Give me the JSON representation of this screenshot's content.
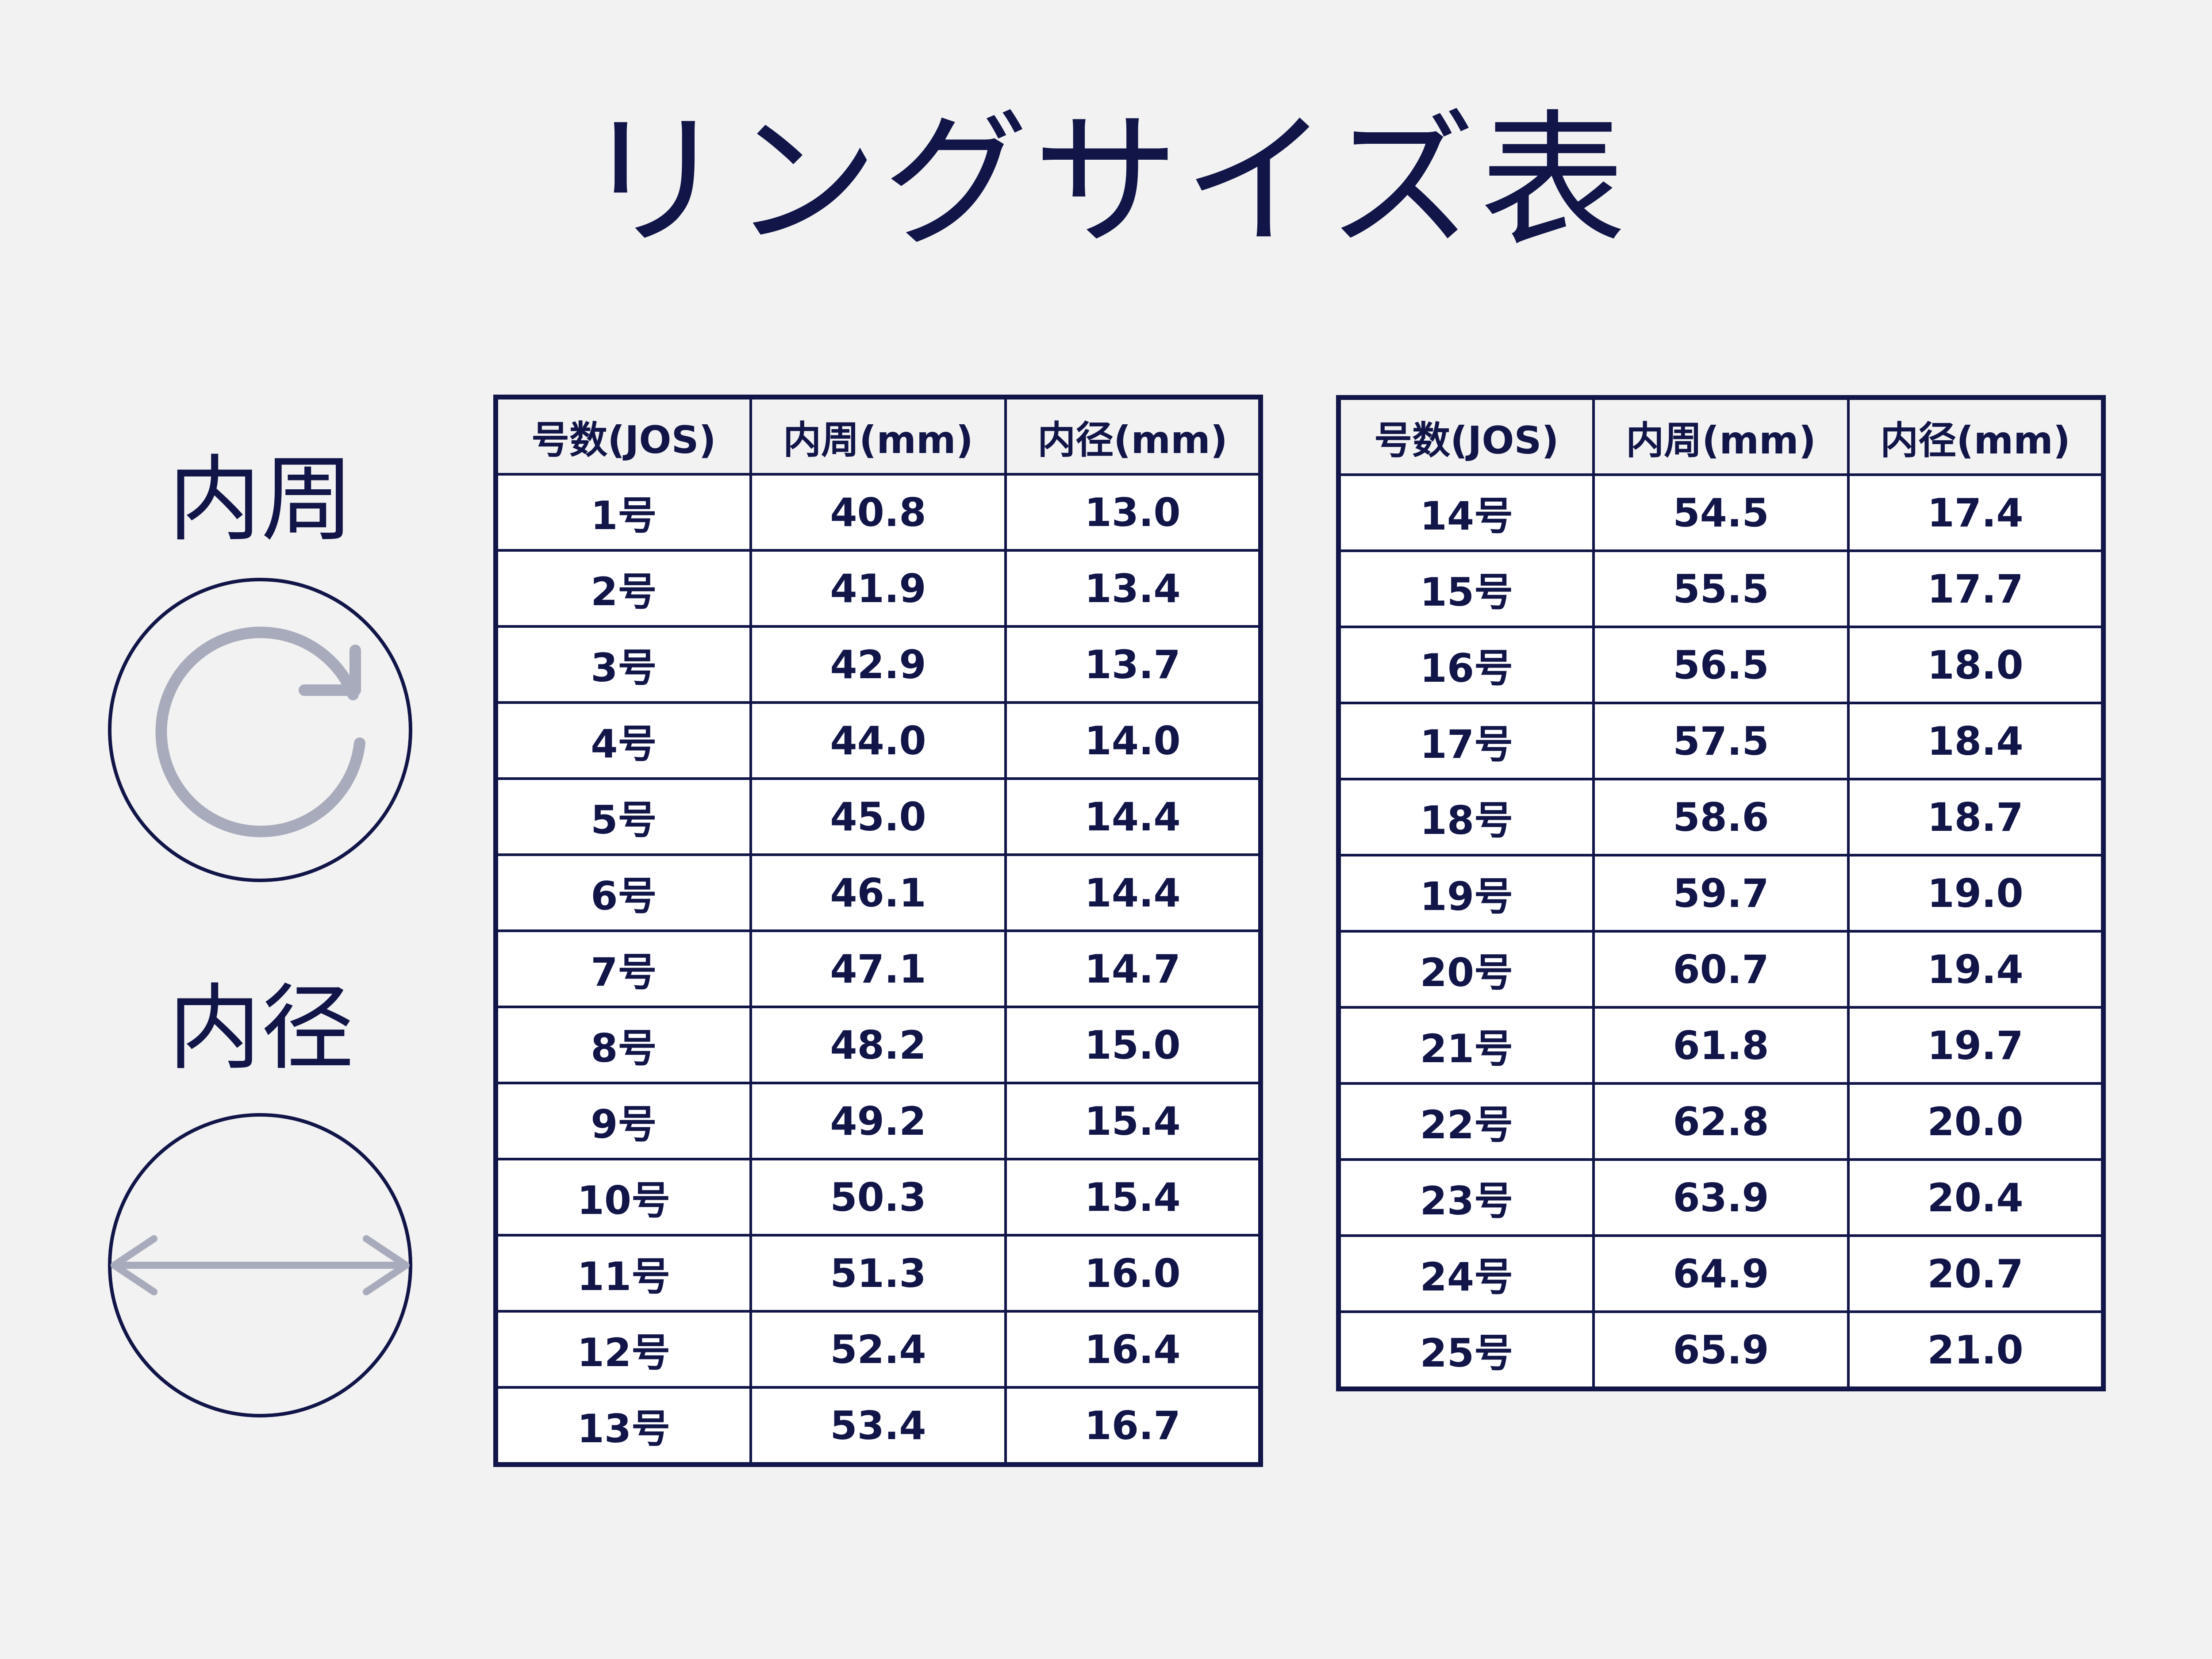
{
  "title": "リングサイズ表",
  "labels": {
    "circumference": "内周",
    "diameter": "内径"
  },
  "icons": {
    "circumference": "circular-arrow-icon",
    "diameter": "double-arrow-icon"
  },
  "colors": {
    "background": "#f2f2f2",
    "navy": "#111548",
    "icon_gray": "#a8abbb",
    "cell": "#ffffff"
  },
  "table": {
    "headers": [
      "号数(JOS)",
      "内周(mm)",
      "内径(mm)"
    ],
    "left": [
      [
        "1号",
        "40.8",
        "13.0"
      ],
      [
        "2号",
        "41.9",
        "13.4"
      ],
      [
        "3号",
        "42.9",
        "13.7"
      ],
      [
        "4号",
        "44.0",
        "14.0"
      ],
      [
        "5号",
        "45.0",
        "14.4"
      ],
      [
        "6号",
        "46.1",
        "14.4"
      ],
      [
        "7号",
        "47.1",
        "14.7"
      ],
      [
        "8号",
        "48.2",
        "15.0"
      ],
      [
        "9号",
        "49.2",
        "15.4"
      ],
      [
        "10号",
        "50.3",
        "15.4"
      ],
      [
        "11号",
        "51.3",
        "16.0"
      ],
      [
        "12号",
        "52.4",
        "16.4"
      ],
      [
        "13号",
        "53.4",
        "16.7"
      ]
    ],
    "right": [
      [
        "14号",
        "54.5",
        "17.4"
      ],
      [
        "15号",
        "55.5",
        "17.7"
      ],
      [
        "16号",
        "56.5",
        "18.0"
      ],
      [
        "17号",
        "57.5",
        "18.4"
      ],
      [
        "18号",
        "58.6",
        "18.7"
      ],
      [
        "19号",
        "59.7",
        "19.0"
      ],
      [
        "20号",
        "60.7",
        "19.4"
      ],
      [
        "21号",
        "61.8",
        "19.7"
      ],
      [
        "22号",
        "62.8",
        "20.0"
      ],
      [
        "23号",
        "63.9",
        "20.4"
      ],
      [
        "24号",
        "64.9",
        "20.7"
      ],
      [
        "25号",
        "65.9",
        "21.0"
      ]
    ]
  }
}
